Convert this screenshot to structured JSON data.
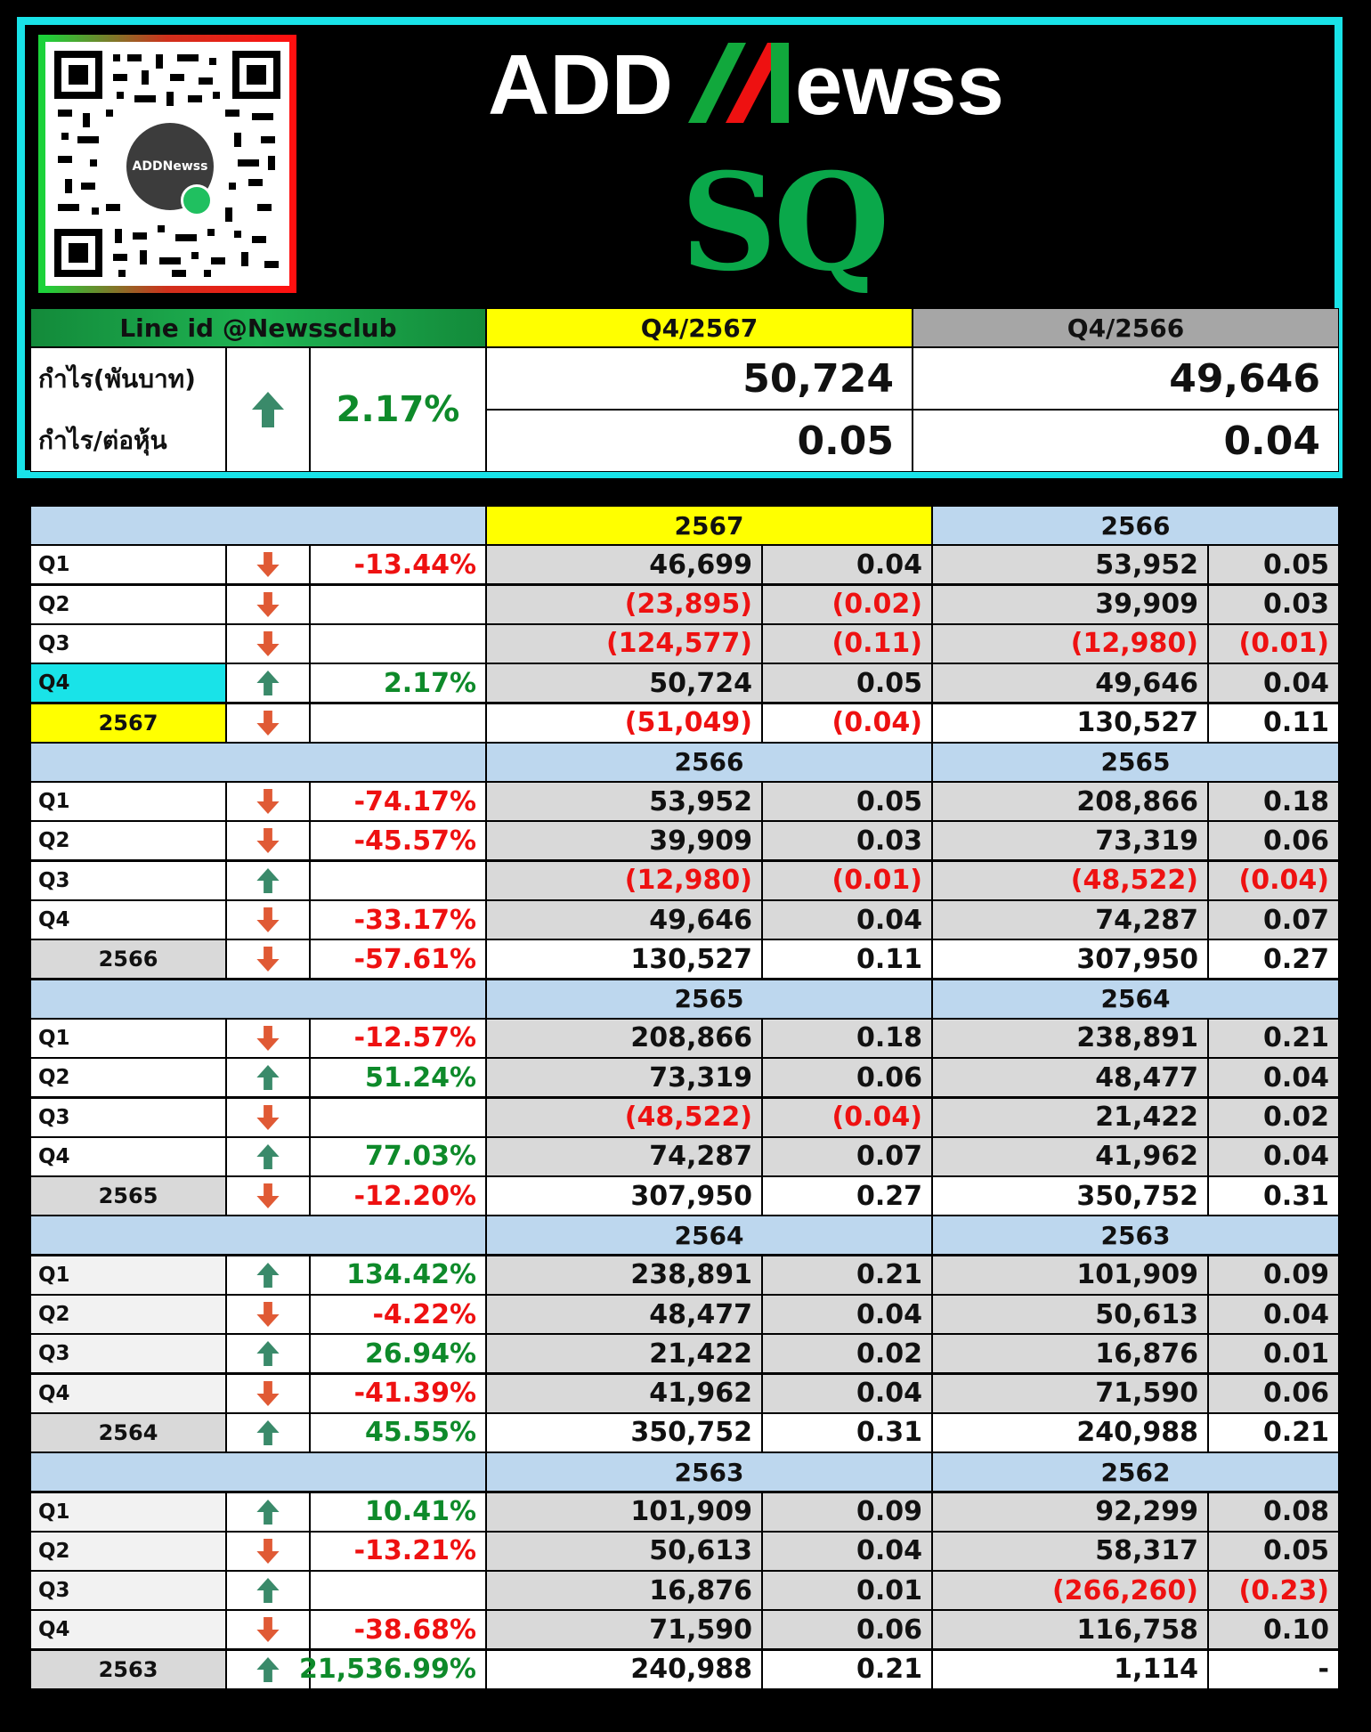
{
  "brand": {
    "logo_text_left": "ADD",
    "logo_text_right": "ewss",
    "ticker": "SQ",
    "qr_label": "ADDNewss"
  },
  "summary": {
    "line_id": "Line id @Newssclub",
    "period_current": "Q4/2567",
    "period_previous": "Q4/2566",
    "label_profit": "กำไร(พันบาท)",
    "label_eps": "กำไร/ต่อหุ้น",
    "change": "2.17%",
    "change_direction": "up",
    "profit_current": "50,724",
    "profit_previous": "49,646",
    "eps_current": "0.05",
    "eps_previous": "0.04"
  },
  "colors": {
    "frame": "#19e3e8",
    "header_blue": "#bdd7ee",
    "highlight_yellow": "#ffff00",
    "grey": "#d9d9d9",
    "up_arrow": "#3a8a6a",
    "down_arrow": "#e05a35",
    "negative": "#ee1111",
    "positive": "#0e8a2a"
  },
  "blocks": [
    {
      "year_a": "2567",
      "year_b": "2566",
      "year_a_highlight": true,
      "rows": [
        {
          "label": "Q1",
          "dir": "down",
          "change": "-13.44%",
          "a_profit": "46,699",
          "a_eps": "0.04",
          "b_profit": "53,952",
          "b_eps": "0.05"
        },
        {
          "label": "Q2",
          "dir": "down",
          "change": "",
          "a_profit": "(23,895)",
          "a_eps": "(0.02)",
          "b_profit": "39,909",
          "b_eps": "0.03"
        },
        {
          "label": "Q3",
          "dir": "down",
          "change": "",
          "a_profit": "(124,577)",
          "a_eps": "(0.11)",
          "b_profit": "(12,980)",
          "b_eps": "(0.01)"
        },
        {
          "label": "Q4",
          "dir": "up",
          "change": "2.17%",
          "a_profit": "50,724",
          "a_eps": "0.05",
          "b_profit": "49,646",
          "b_eps": "0.04",
          "label_highlight": "cyan"
        },
        {
          "label": "2567",
          "dir": "down",
          "change": "",
          "a_profit": "(51,049)",
          "a_eps": "(0.04)",
          "b_profit": "130,527",
          "b_eps": "0.11",
          "total": true,
          "label_highlight": "yellow"
        }
      ]
    },
    {
      "year_a": "2566",
      "year_b": "2565",
      "rows": [
        {
          "label": "Q1",
          "dir": "down",
          "change": "-74.17%",
          "a_profit": "53,952",
          "a_eps": "0.05",
          "b_profit": "208,866",
          "b_eps": "0.18"
        },
        {
          "label": "Q2",
          "dir": "down",
          "change": "-45.57%",
          "a_profit": "39,909",
          "a_eps": "0.03",
          "b_profit": "73,319",
          "b_eps": "0.06"
        },
        {
          "label": "Q3",
          "dir": "up",
          "change": "",
          "a_profit": "(12,980)",
          "a_eps": "(0.01)",
          "b_profit": "(48,522)",
          "b_eps": "(0.04)"
        },
        {
          "label": "Q4",
          "dir": "down",
          "change": "-33.17%",
          "a_profit": "49,646",
          "a_eps": "0.04",
          "b_profit": "74,287",
          "b_eps": "0.07"
        },
        {
          "label": "2566",
          "dir": "down",
          "change": "-57.61%",
          "a_profit": "130,527",
          "a_eps": "0.11",
          "b_profit": "307,950",
          "b_eps": "0.27",
          "total": true
        }
      ]
    },
    {
      "year_a": "2565",
      "year_b": "2564",
      "rows": [
        {
          "label": "Q1",
          "dir": "down",
          "change": "-12.57%",
          "a_profit": "208,866",
          "a_eps": "0.18",
          "b_profit": "238,891",
          "b_eps": "0.21"
        },
        {
          "label": "Q2",
          "dir": "up",
          "change": "51.24%",
          "a_profit": "73,319",
          "a_eps": "0.06",
          "b_profit": "48,477",
          "b_eps": "0.04"
        },
        {
          "label": "Q3",
          "dir": "down",
          "change": "",
          "a_profit": "(48,522)",
          "a_eps": "(0.04)",
          "b_profit": "21,422",
          "b_eps": "0.02"
        },
        {
          "label": "Q4",
          "dir": "up",
          "change": "77.03%",
          "a_profit": "74,287",
          "a_eps": "0.07",
          "b_profit": "41,962",
          "b_eps": "0.04"
        },
        {
          "label": "2565",
          "dir": "down",
          "change": "-12.20%",
          "a_profit": "307,950",
          "a_eps": "0.27",
          "b_profit": "350,752",
          "b_eps": "0.31",
          "total": true
        }
      ]
    },
    {
      "year_a": "2564",
      "year_b": "2563",
      "rows": [
        {
          "label": "Q1",
          "dir": "up",
          "change": "134.42%",
          "a_profit": "238,891",
          "a_eps": "0.21",
          "b_profit": "101,909",
          "b_eps": "0.09"
        },
        {
          "label": "Q2",
          "dir": "down",
          "change": "-4.22%",
          "a_profit": "48,477",
          "a_eps": "0.04",
          "b_profit": "50,613",
          "b_eps": "0.04"
        },
        {
          "label": "Q3",
          "dir": "up",
          "change": "26.94%",
          "a_profit": "21,422",
          "a_eps": "0.02",
          "b_profit": "16,876",
          "b_eps": "0.01"
        },
        {
          "label": "Q4",
          "dir": "down",
          "change": "-41.39%",
          "a_profit": "41,962",
          "a_eps": "0.04",
          "b_profit": "71,590",
          "b_eps": "0.06"
        },
        {
          "label": "2564",
          "dir": "up",
          "change": "45.55%",
          "a_profit": "350,752",
          "a_eps": "0.31",
          "b_profit": "240,988",
          "b_eps": "0.21",
          "total": true
        }
      ]
    },
    {
      "year_a": "2563",
      "year_b": "2562",
      "rows": [
        {
          "label": "Q1",
          "dir": "up",
          "change": "10.41%",
          "a_profit": "101,909",
          "a_eps": "0.09",
          "b_profit": "92,299",
          "b_eps": "0.08"
        },
        {
          "label": "Q2",
          "dir": "down",
          "change": "-13.21%",
          "a_profit": "50,613",
          "a_eps": "0.04",
          "b_profit": "58,317",
          "b_eps": "0.05"
        },
        {
          "label": "Q3",
          "dir": "up",
          "change": "",
          "a_profit": "16,876",
          "a_eps": "0.01",
          "b_profit": "(266,260)",
          "b_eps": "(0.23)"
        },
        {
          "label": "Q4",
          "dir": "down",
          "change": "-38.68%",
          "a_profit": "71,590",
          "a_eps": "0.06",
          "b_profit": "116,758",
          "b_eps": "0.10"
        },
        {
          "label": "2563",
          "dir": "up",
          "change": "21,536.99%",
          "a_profit": "240,988",
          "a_eps": "0.21",
          "b_profit": "1,114",
          "b_eps": "-",
          "total": true
        }
      ]
    }
  ]
}
